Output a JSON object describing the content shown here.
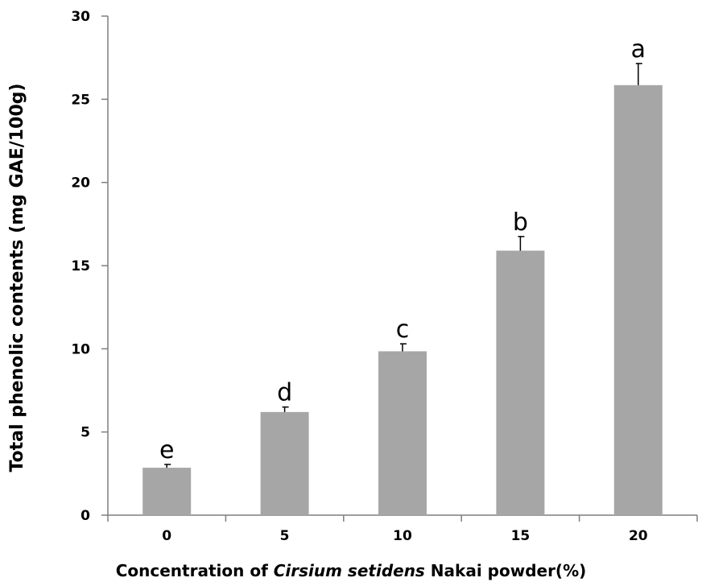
{
  "chart_data": {
    "type": "bar",
    "categories": [
      "0",
      "5",
      "10",
      "15",
      "20"
    ],
    "values": [
      2.85,
      6.2,
      9.85,
      15.9,
      25.85
    ],
    "errors": [
      0.2,
      0.3,
      0.45,
      0.85,
      1.3
    ],
    "significance_labels": [
      "e",
      "d",
      "c",
      "b",
      "a"
    ],
    "ylabel": "Total phenolic contents (mg GAE/100g)",
    "xlabel_parts": [
      "Concentration of ",
      "Cirsium setidens",
      " Nakai powder(%)"
    ],
    "ylim": [
      0,
      30
    ],
    "yticks": [
      0,
      5,
      10,
      15,
      20,
      25,
      30
    ],
    "bar_color": "#a6a6a6",
    "axis_color": "#7f7f7f",
    "grid": false,
    "legend": "none"
  }
}
